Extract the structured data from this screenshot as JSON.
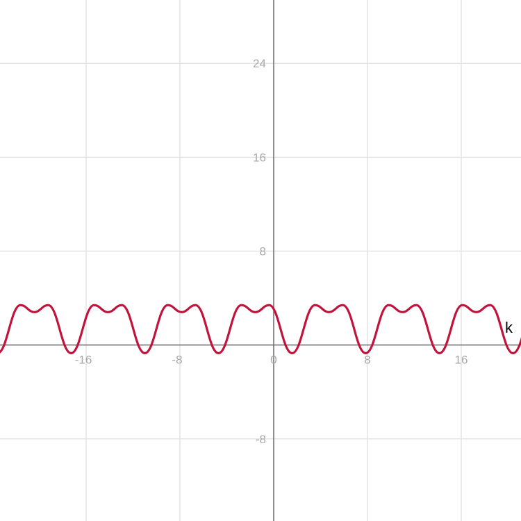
{
  "chart_data": {
    "type": "line",
    "title": "",
    "xlabel": "k",
    "ylabel": "",
    "xlim": [
      -23.35,
      21.1
    ],
    "ylim": [
      -15.0,
      29.4
    ],
    "grid": true,
    "x_ticks": [
      -16,
      -8,
      0,
      8,
      16
    ],
    "y_ticks": [
      24,
      16,
      8,
      -8
    ],
    "x_tick_labels": [
      "-16",
      "-8",
      "0",
      "8",
      "16"
    ],
    "y_tick_labels": [
      "24",
      "16",
      "8",
      "-8"
    ],
    "series": [
      {
        "color": "#c0143c",
        "extrema": [
          [
            -23.56,
            -0.7
          ],
          [
            -21.6,
            3.4
          ],
          [
            -20.42,
            2.8
          ],
          [
            -19.24,
            3.4
          ],
          [
            -17.28,
            -0.7
          ],
          [
            -15.32,
            3.4
          ],
          [
            -14.14,
            2.8
          ],
          [
            -12.96,
            3.4
          ],
          [
            -10.99,
            -0.7
          ],
          [
            -9.03,
            3.4
          ],
          [
            -7.85,
            2.8
          ],
          [
            -6.67,
            3.4
          ],
          [
            -4.71,
            -0.7
          ],
          [
            -2.75,
            3.4
          ],
          [
            -1.57,
            2.8
          ],
          [
            -0.39,
            3.4
          ],
          [
            1.57,
            -0.7
          ],
          [
            3.53,
            3.4
          ],
          [
            4.71,
            2.8
          ],
          [
            5.89,
            3.4
          ],
          [
            7.85,
            -0.7
          ],
          [
            9.81,
            3.4
          ],
          [
            10.99,
            2.8
          ],
          [
            12.17,
            3.4
          ],
          [
            14.14,
            -0.7
          ],
          [
            16.1,
            3.4
          ],
          [
            17.28,
            2.8
          ],
          [
            18.46,
            3.4
          ],
          [
            20.42,
            -0.7
          ],
          [
            22.38,
            3.4
          ]
        ]
      }
    ]
  }
}
